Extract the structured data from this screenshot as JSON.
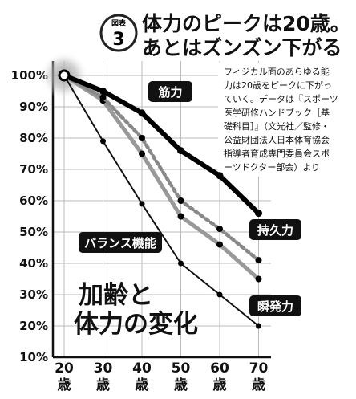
{
  "header": {
    "badge_label": "図表",
    "badge_number": "3",
    "title_lines": [
      "体力のピークは20歳。",
      "あとはズンズン下がる"
    ]
  },
  "note_lines": [
    "フィジカル面のあらゆる能",
    "力は20歳をピークに下がっ",
    "ていく。データは『スポーツ",
    "医学研修ハンドブック［基",
    "礎科目］』（文光社／監修・",
    "公益財団法人日本体育協会",
    "指導者育成専門委員会スポ",
    "ーツドクター部会）より"
  ],
  "chart_title_lines": [
    "加齢と",
    "体力の変化"
  ],
  "colors": {
    "strength": "#000000",
    "endurance": "#888888",
    "power": "#999999",
    "balance": "#111111",
    "grid": "#bbbbbb",
    "badge": "#222222"
  },
  "chart_data": {
    "type": "line",
    "x": [
      20,
      30,
      40,
      50,
      60,
      70
    ],
    "x_tick_labels": [
      [
        "20",
        "歳"
      ],
      [
        "30",
        "歳"
      ],
      [
        "40",
        "歳"
      ],
      [
        "50",
        "歳"
      ],
      [
        "60",
        "歳"
      ],
      [
        "70",
        "歳"
      ]
    ],
    "y_tick_labels": [
      "100%",
      "90%",
      "80%",
      "70%",
      "60%",
      "50%",
      "40%",
      "30%",
      "20%",
      "10%"
    ],
    "ylim": [
      10,
      100
    ],
    "grid": true,
    "series": [
      {
        "name": "筋力",
        "key": "strength",
        "style": "thick",
        "values": [
          100,
          95,
          88,
          76,
          68,
          56
        ]
      },
      {
        "name": "持久力",
        "key": "endurance",
        "style": "dashed",
        "values": [
          100,
          93,
          80,
          60,
          51,
          41
        ]
      },
      {
        "name": "瞬発力",
        "key": "power",
        "style": "gray",
        "values": [
          100,
          92,
          75,
          55,
          46,
          35
        ]
      },
      {
        "name": "バランス機能",
        "key": "balance",
        "style": "thin",
        "values": [
          100,
          79,
          59,
          40,
          30,
          20
        ]
      }
    ]
  }
}
